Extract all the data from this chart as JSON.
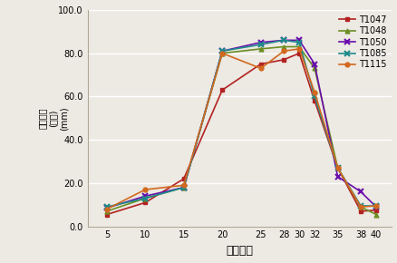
{
  "x": [
    5,
    10,
    15,
    20,
    25,
    28,
    30,
    32,
    35,
    38,
    40
  ],
  "series": {
    "T1047": [
      5.5,
      11.0,
      22.0,
      63.0,
      75.0,
      77.0,
      80.0,
      58.0,
      27.0,
      7.0,
      7.5
    ],
    "T1048": [
      7.0,
      13.0,
      18.0,
      80.0,
      82.0,
      83.0,
      83.0,
      73.0,
      27.0,
      9.0,
      5.5
    ],
    "T1050": [
      8.5,
      14.0,
      18.0,
      81.0,
      85.0,
      86.0,
      86.0,
      75.0,
      23.0,
      16.0,
      9.0
    ],
    "T1085": [
      9.0,
      13.0,
      18.0,
      81.0,
      84.0,
      86.0,
      85.0,
      60.0,
      27.0,
      9.5,
      9.5
    ],
    "T1115": [
      8.0,
      17.0,
      19.0,
      80.0,
      73.0,
      81.0,
      82.0,
      62.0,
      27.0,
      9.0,
      9.5
    ]
  },
  "colors": {
    "T1047": "#B22222",
    "T1048": "#6B8E23",
    "T1050": "#6A0DAD",
    "T1085": "#1E8B8B",
    "T1115": "#D2691E"
  },
  "markers": {
    "T1047": "s",
    "T1048": "^",
    "T1050": "x",
    "T1085": "x",
    "T1115": "o"
  },
  "ylim": [
    0.0,
    100.0
  ],
  "yticks": [
    0.0,
    20.0,
    40.0,
    60.0,
    80.0,
    100.0
  ],
  "ylabel": "(mm)\n균사직경\n(설정)",
  "xlabel": "배양온도",
  "background_color": "#ede9e3",
  "grid_color": "#ffffff",
  "legend_order": [
    "T1047",
    "T1048",
    "T1050",
    "T1085",
    "T1115"
  ]
}
